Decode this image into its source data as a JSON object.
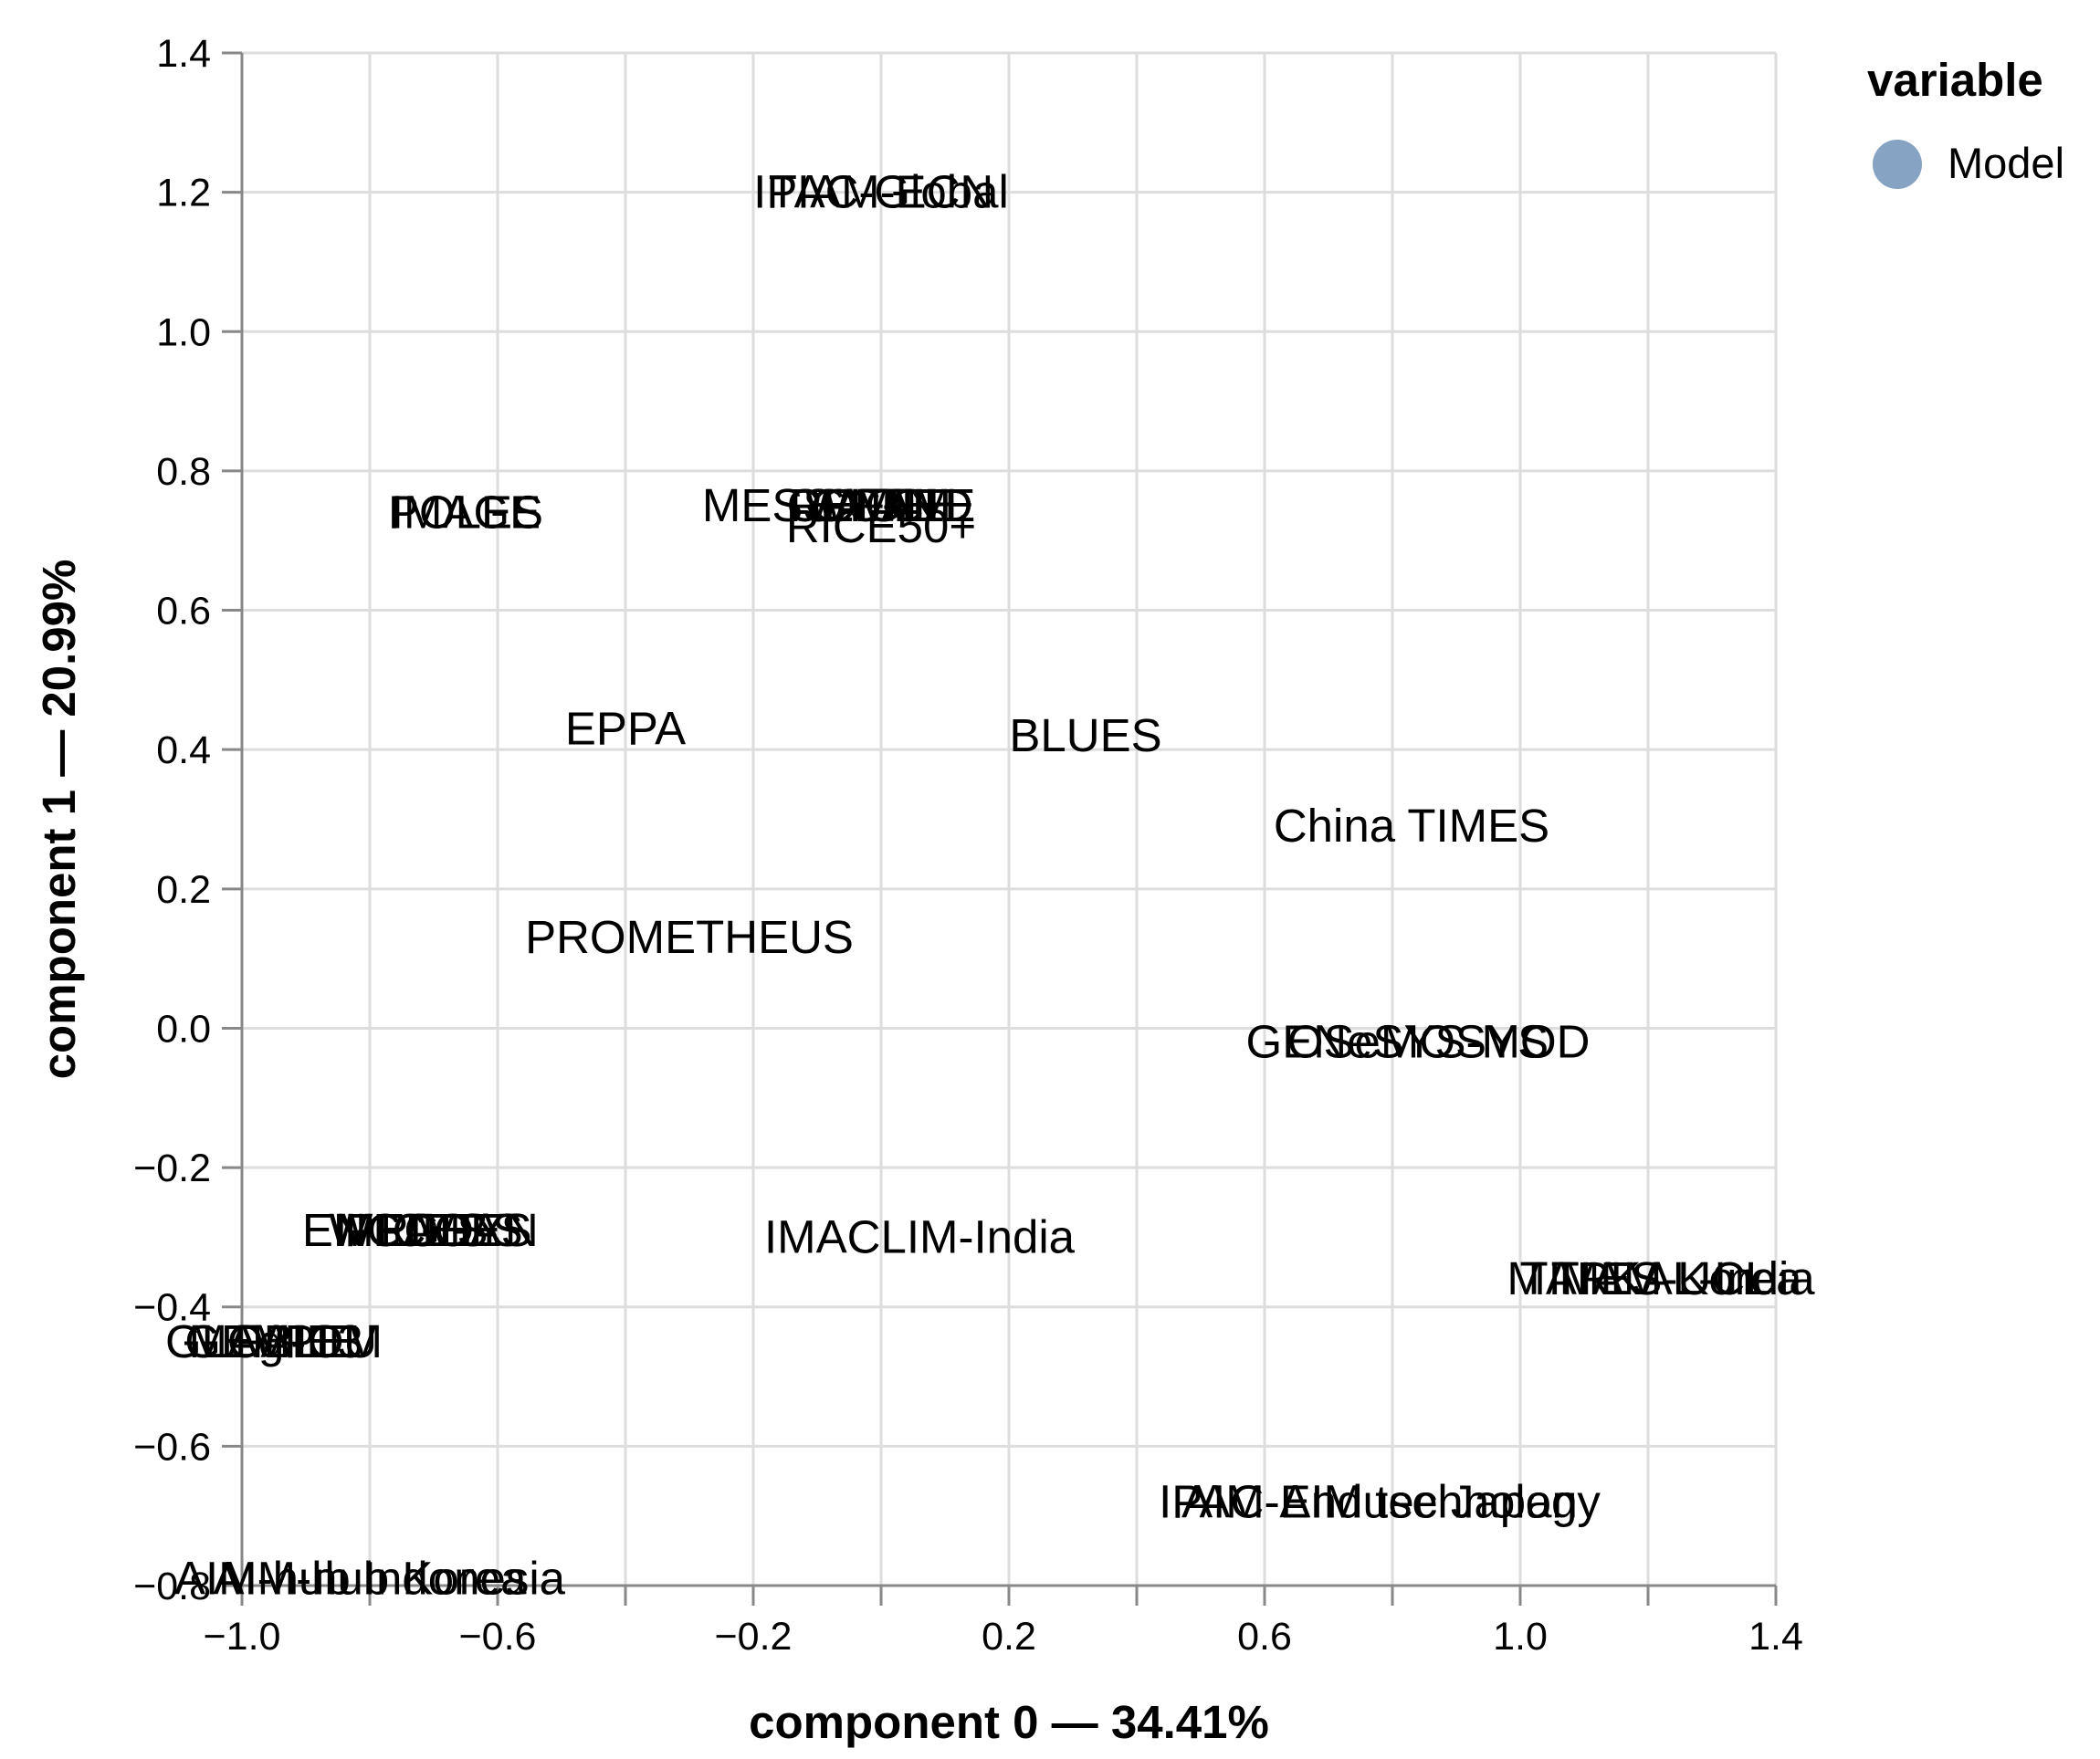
{
  "chart_data": {
    "type": "scatter",
    "mark": "text",
    "xlabel": "component 0 — 34.41%",
    "ylabel": "component 1 — 20.99%",
    "xlim": [
      -1.0,
      1.4
    ],
    "ylim": [
      -0.8,
      1.4
    ],
    "x_tick_labels": [
      "−1.0",
      "−0.6",
      "−0.2",
      "0.2",
      "0.6",
      "1.0",
      "1.4"
    ],
    "y_tick_labels": [
      "1.4",
      "1.2",
      "1.0",
      "0.8",
      "0.6",
      "0.4",
      "0.2",
      "0.0",
      "−0.2",
      "−0.4",
      "−0.6",
      "−0.8"
    ],
    "grid": true,
    "legend": {
      "title": "variable",
      "position": "top-right",
      "items": [
        {
          "label": "Model",
          "color": "#86a3c3"
        }
      ]
    },
    "series": [
      {
        "name": "Model",
        "color": "#86a3c3",
        "points": [
          {
            "label": "IPAC-Global",
            "x": 0.0,
            "y": 1.2
          },
          {
            "label": "TIAM-ECN",
            "x": 0.0,
            "y": 1.2
          },
          {
            "label": "POLES",
            "x": -0.65,
            "y": 0.74
          },
          {
            "label": "IMAGE",
            "x": -0.65,
            "y": 0.74
          },
          {
            "label": "MESSAGE",
            "x": -0.1,
            "y": 0.75
          },
          {
            "label": "COFFEE",
            "x": 0.0,
            "y": 0.75
          },
          {
            "label": "GCAM",
            "x": 0.0,
            "y": 0.75
          },
          {
            "label": "REMIND",
            "x": 0.0,
            "y": 0.75
          },
          {
            "label": "WITCH",
            "x": 0.0,
            "y": 0.75
          },
          {
            "label": "RICE50+",
            "x": 0.0,
            "y": 0.72
          },
          {
            "label": "EPPA",
            "x": -0.4,
            "y": 0.43
          },
          {
            "label": "BLUES",
            "x": 0.32,
            "y": 0.42
          },
          {
            "label": "China TIMES",
            "x": 0.83,
            "y": 0.29
          },
          {
            "label": "PROMETHEUS",
            "x": -0.3,
            "y": 0.13
          },
          {
            "label": "GENeSYS-MOD",
            "x": 0.84,
            "y": -0.02
          },
          {
            "label": "OSeMOSYS",
            "x": 0.84,
            "y": -0.02
          },
          {
            "label": "ENGAGE",
            "x": -0.75,
            "y": -0.29
          },
          {
            "label": "ICES",
            "x": -0.7,
            "y": -0.29
          },
          {
            "label": "MEDEAS",
            "x": -0.7,
            "y": -0.29
          },
          {
            "label": "PRIMES",
            "x": -0.7,
            "y": -0.29
          },
          {
            "label": "WEGDYN",
            "x": -0.7,
            "y": -0.29
          },
          {
            "label": "IMACLIM-India",
            "x": 0.06,
            "y": -0.3
          },
          {
            "label": "MARKAL-India",
            "x": 1.22,
            "y": -0.36
          },
          {
            "label": "TIMES-Korea",
            "x": 1.22,
            "y": -0.36
          },
          {
            "label": "TIAM-UCL",
            "x": 1.22,
            "y": -0.36
          },
          {
            "label": "GEM-E3",
            "x": -0.95,
            "y": -0.45
          },
          {
            "label": "GLOBIOM",
            "x": -0.95,
            "y": -0.45
          },
          {
            "label": "MAgPIE",
            "x": -0.95,
            "y": -0.45
          },
          {
            "label": "FALLU",
            "x": -0.9,
            "y": -0.45
          },
          {
            "label": "IPAC-AIM technology",
            "x": 0.78,
            "y": -0.68
          },
          {
            "label": "AIM-Enduse Japan",
            "x": 0.78,
            "y": -0.68
          },
          {
            "label": "AIM-hub Indonesia",
            "x": -0.8,
            "y": -0.79
          },
          {
            "label": "AIM-hub Korea",
            "x": -0.8,
            "y": -0.79
          }
        ]
      }
    ]
  }
}
